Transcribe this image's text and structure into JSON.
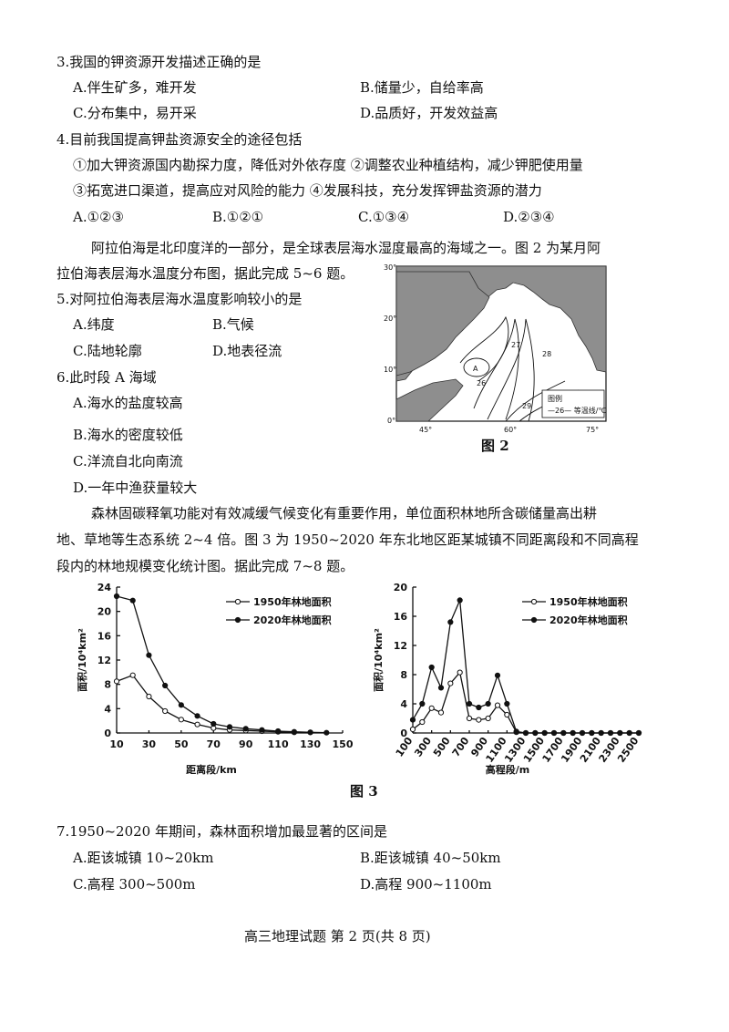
{
  "q3": {
    "stem": "3.我国的钾资源开发描述正确的是",
    "a": "A.伴生矿多，难开发",
    "b": "B.储量少，自给率高",
    "c": "C.分布集中，易开采",
    "d": "D.品质好，开发效益高"
  },
  "q4": {
    "stem": "4.目前我国提高钾盐资源安全的途径包括",
    "line1": "①加大钾资源国内勘探力度，降低对外依存度 ②调整农业种植结构，减少钾肥使用量",
    "line2": "③拓宽进口渠道，提高应对风险的能力 ④发展科技，充分发挥钾盐资源的潜力",
    "a": "A.①②③",
    "b": "B.①②①",
    "c": "C.①③④",
    "d": "D.②③④"
  },
  "intro2": {
    "line1": "阿拉伯海是北印度洋的一部分，是全球表层海水湿度最高的海域之一。图 2 为某月阿",
    "line2": "拉伯海表层海水温度分布图，据此完成 5~6 题。"
  },
  "q5": {
    "stem": "5.对阿拉伯海表层海水温度影响较小的是",
    "a": "A.纬度",
    "b": "B.气候",
    "c": "C.陆地轮廓",
    "d": "D.地表径流"
  },
  "q6": {
    "stem": "6.此时段 A 海域",
    "a": "A.海水的盐度较高",
    "b": "B.海水的密度较低",
    "c": "C.洋流自北向南流",
    "d": "D.一年中渔获量较大"
  },
  "fig2": {
    "caption": "图 2",
    "lat_labels": [
      "30°",
      "20°",
      "10°",
      "0°"
    ],
    "lon_labels": [
      "45°",
      "60°",
      "75°"
    ],
    "iso_labels": [
      "27",
      "28",
      "26",
      "29"
    ],
    "point_label": "A",
    "legend_title": "图例",
    "legend_text": "—26— 等温线/℃"
  },
  "intro3": {
    "line1": "森林固碳释氧功能对有效减缓气候变化有重要作用，单位面积林地所含碳储量高出耕",
    "line2": "地、草地等生态系统 2~4 倍。图 3 为 1950~2020 年东北地区距某城镇不同距离段和不同高程",
    "line3": "段内的林地规模变化统计图。据此完成 7~8 题。"
  },
  "chart_data": [
    {
      "type": "line",
      "xlabel": "距离段/km",
      "ylabel": "面积/10⁴km²",
      "x": [
        10,
        20,
        30,
        40,
        50,
        60,
        70,
        80,
        90,
        100,
        110,
        120,
        130,
        140,
        150
      ],
      "xticks": [
        "10",
        "30",
        "50",
        "70",
        "90",
        "110",
        "130",
        "150"
      ],
      "yticks": [
        "0",
        "4",
        "8",
        "12",
        "16",
        "20",
        "24"
      ],
      "ylim": [
        0,
        24
      ],
      "xlim": [
        10,
        150
      ],
      "series": [
        {
          "name": "1950年林地面积",
          "marker": "open",
          "values": [
            8.5,
            9.5,
            6.0,
            3.6,
            2.2,
            1.4,
            0.8,
            0.5,
            0.4,
            0.3,
            0.2,
            0.1,
            0.1,
            null,
            null
          ]
        },
        {
          "name": "2020年林地面积",
          "marker": "filled",
          "values": [
            22.5,
            21.8,
            12.8,
            7.8,
            4.6,
            2.8,
            1.5,
            1.0,
            0.7,
            0.5,
            0.3,
            0.2,
            0.1,
            0.05,
            null
          ]
        }
      ]
    },
    {
      "type": "line",
      "xlabel": "高程段/m",
      "ylabel": "面积/10⁴km²",
      "x": [
        100,
        200,
        300,
        400,
        500,
        600,
        700,
        800,
        900,
        1000,
        1100,
        1200,
        1300,
        1400,
        1500,
        1600,
        1700,
        1800,
        1900,
        2000,
        2100,
        2200,
        2300,
        2400,
        2500
      ],
      "xticks": [
        "100",
        "300",
        "500",
        "700",
        "900",
        "1100",
        "1300",
        "1500",
        "1700",
        "1900",
        "2100",
        "2300",
        "2500"
      ],
      "yticks": [
        "0",
        "4",
        "8",
        "12",
        "16",
        "20"
      ],
      "ylim": [
        0,
        20
      ],
      "xlim": [
        100,
        2500
      ],
      "series": [
        {
          "name": "1950年林地面积",
          "marker": "open",
          "values": [
            0.5,
            1.5,
            3.4,
            2.8,
            6.8,
            8.3,
            2.0,
            1.8,
            2.0,
            3.8,
            2.5,
            0.1,
            0,
            0,
            0,
            0,
            0,
            0,
            0,
            0,
            0,
            0,
            0,
            0,
            0
          ]
        },
        {
          "name": "2020年林地面积",
          "marker": "filled",
          "values": [
            1.8,
            4.0,
            9.0,
            6.2,
            15.2,
            18.2,
            4.0,
            3.5,
            4.0,
            7.9,
            4.0,
            0.2,
            0,
            0,
            0,
            0,
            0,
            0,
            0,
            0,
            0,
            0,
            0,
            0,
            0
          ]
        }
      ]
    }
  ],
  "fig3_caption": "图 3",
  "q7": {
    "stem": "7.1950~2020 年期间，森林面积增加最显著的区间是",
    "a": "A.距该城镇 10~20km",
    "b": "B.距该城镇 40~50km",
    "c": "C.高程 300~500m",
    "d": "D.高程 900~1100m"
  },
  "footer": "高三地理试题 第 2 页(共 8 页)"
}
